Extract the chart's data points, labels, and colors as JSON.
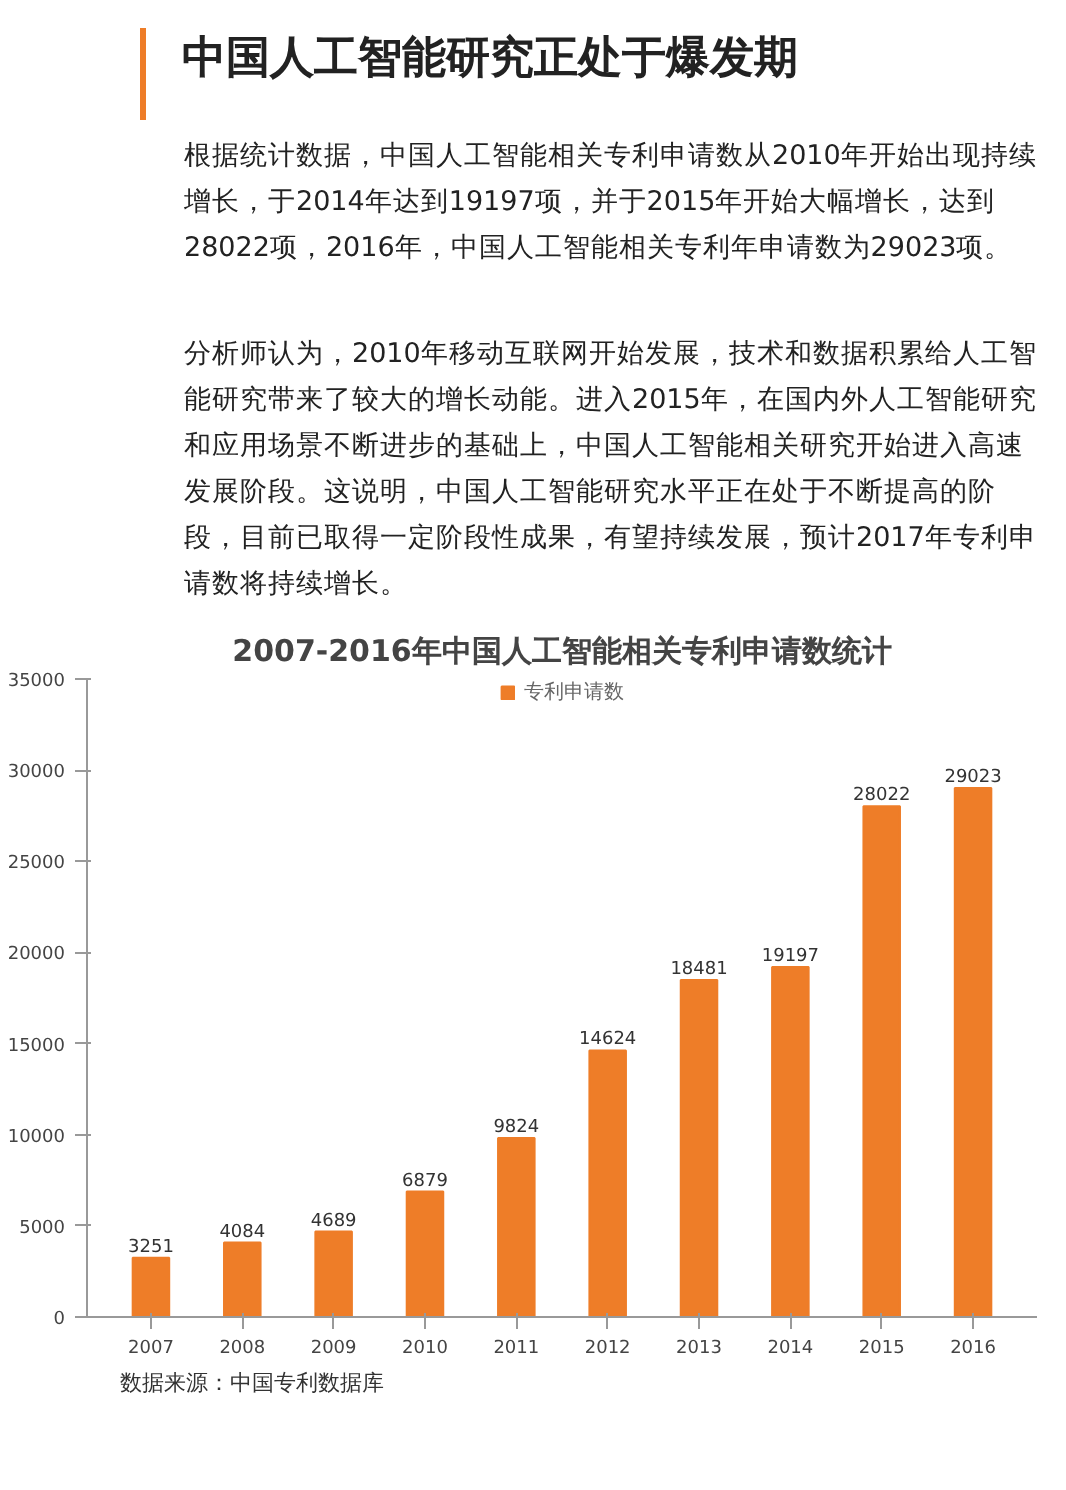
{
  "chart_data": {
    "type": "bar",
    "title": "中国人工智能研究正处于爆发期",
    "subtitle": "2007-2016年中国人工智能相关专利申请数统计",
    "annotations": [
      "根据统计数据，中国人工智能相关专利申请数从2010年开始出现持续增长，于2014年达到19197项，并于2015年开始大幅增长，达到28022项，2016年，中国人工智能相关专利年申请数为29023项。",
      "分析师认为，2010年移动互联网开始发展，技术和数据积累给人工智能研究带来了较大的增长动能。进入2015年，在国内外人工智能研究和应用场景不断进步的基础上，中国人工智能相关研究开始进入高速发展阶段。这说明，中国人工智能研究水平正在处于不断提高的阶段，目前已取得一定阶段性成果，有望持续发展，预计2017年专利申请数将持续增长。",
      "数据来源：中国专利数据库"
    ],
    "categories": [
      "2007",
      "2008",
      "2009",
      "2010",
      "2011",
      "2012",
      "2013",
      "2014",
      "2015",
      "2016"
    ],
    "series": [
      {
        "name": "专利申请数",
        "color": "#ee7d28",
        "values": [
          3251,
          4084,
          4689,
          6879,
          9824,
          14624,
          18481,
          19197,
          28022,
          29023
        ]
      }
    ],
    "ylim": [
      0,
      35000
    ],
    "yticks": [
      0,
      5000,
      10000,
      15000,
      20000,
      25000,
      30000,
      35000
    ],
    "data_labels": true,
    "legend": "top",
    "grid": false
  }
}
